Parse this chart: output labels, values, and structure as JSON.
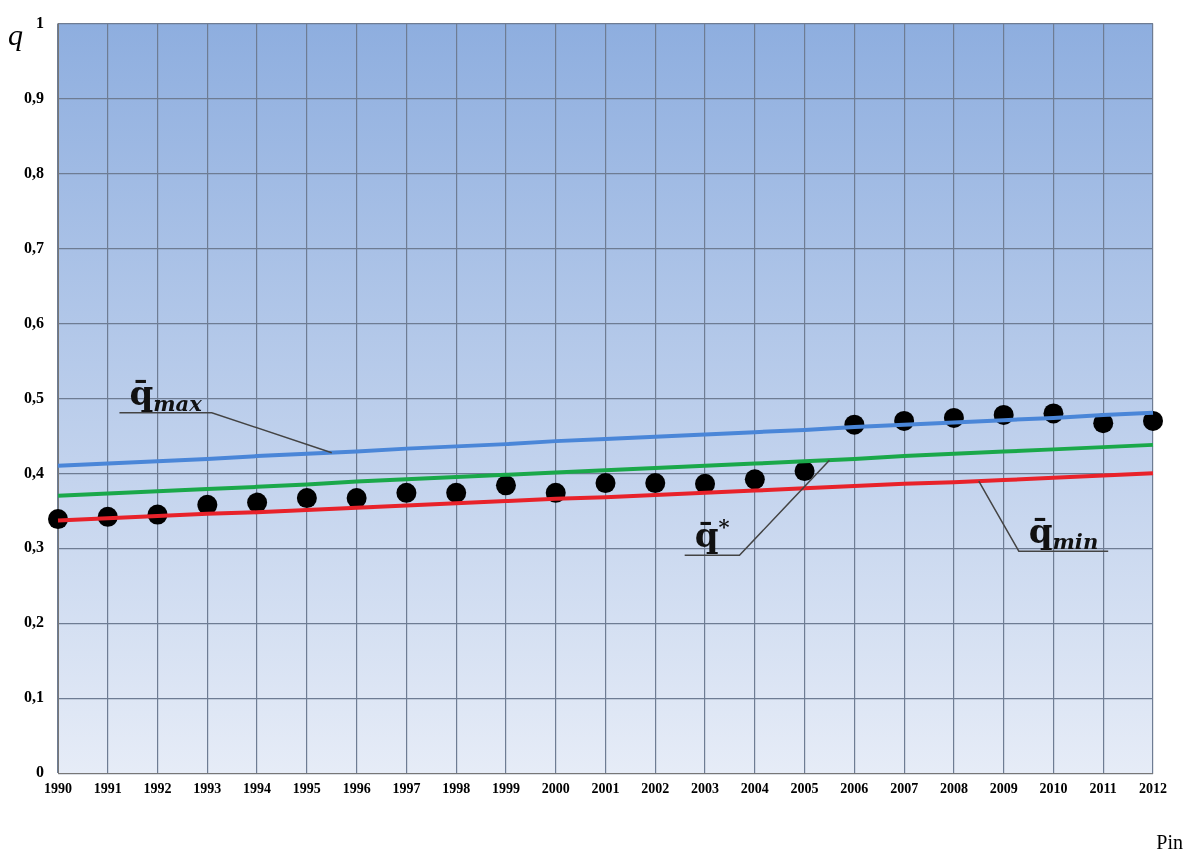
{
  "chart_data": {
    "type": "line",
    "ylabel": "q",
    "categories": [
      "1990",
      "1991",
      "1992",
      "1993",
      "1994",
      "1995",
      "1996",
      "1997",
      "1998",
      "1999",
      "2000",
      "2001",
      "2002",
      "2003",
      "2004",
      "2005",
      "2006",
      "2007",
      "2008",
      "2009",
      "2010",
      "2011",
      "2012"
    ],
    "ylim": [
      0,
      1
    ],
    "yticks": [
      0,
      {
        "value": 0.1,
        "label": "0,1"
      },
      {
        "value": 0.2,
        "label": "0,2"
      },
      {
        "value": 0.3,
        "label": "0,3"
      },
      {
        "value": 0.4,
        "label": "0,4"
      },
      {
        "value": 0.5,
        "label": "0,5"
      },
      {
        "value": 0.6,
        "label": "0,6"
      },
      {
        "value": 0.7,
        "label": "0,7"
      },
      {
        "value": 0.8,
        "label": "0,8"
      },
      {
        "value": 0.9,
        "label": "0,9"
      },
      1
    ],
    "grid": true,
    "legend": false,
    "marker": "none",
    "line_style": "solid",
    "series": [
      {
        "name": "q̄$_{max}$",
        "color": "#4a86d8",
        "values": [
          0.41,
          0.413,
          0.416,
          0.419,
          0.423,
          0.426,
          0.429,
          0.433,
          0.436,
          0.439,
          0.443,
          0.446,
          0.449,
          0.452,
          0.455,
          0.458,
          0.462,
          0.465,
          0.468,
          0.471,
          0.474,
          0.478,
          0.481
        ]
      },
      {
        "name": "q̄$^{*}$",
        "color": "#1aa84a",
        "values": [
          0.37,
          0.373,
          0.376,
          0.379,
          0.382,
          0.385,
          0.389,
          0.392,
          0.395,
          0.398,
          0.401,
          0.404,
          0.407,
          0.41,
          0.413,
          0.416,
          0.419,
          0.423,
          0.426,
          0.429,
          0.432,
          0.435,
          0.438
        ]
      },
      {
        "name": "q̄$_{min}$",
        "color": "#e8222a",
        "values": [
          0.337,
          0.34,
          0.343,
          0.346,
          0.348,
          0.351,
          0.354,
          0.357,
          0.36,
          0.363,
          0.366,
          0.368,
          0.371,
          0.374,
          0.377,
          0.38,
          0.383,
          0.386,
          0.388,
          0.391,
          0.394,
          0.397,
          0.4
        ]
      },
      {
        "type": "scatter",
        "marker": "circle",
        "color": "#000000",
        "values": [
          0.339,
          0.342,
          0.345,
          0.358,
          0.361,
          0.367,
          0.367,
          0.374,
          0.374,
          0.384,
          0.374,
          0.387,
          0.387,
          0.386,
          0.392,
          0.403,
          0.465,
          0.47,
          0.474,
          0.478,
          0.48,
          0.467,
          0.47
        ]
      }
    ],
    "annotations": [
      "Pin"
    ]
  }
}
